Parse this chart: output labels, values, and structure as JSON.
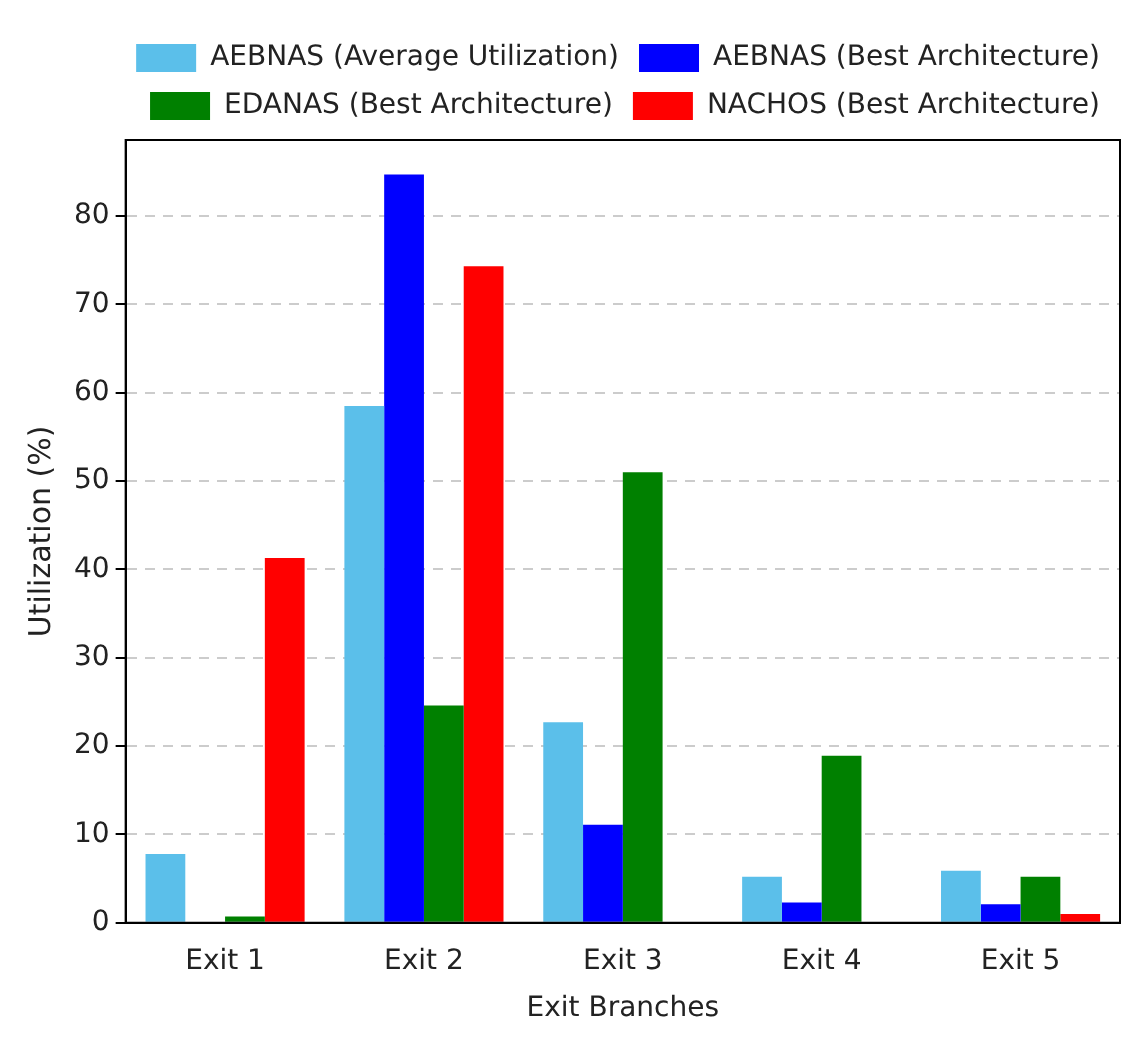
{
  "chart_data": {
    "type": "bar",
    "xlabel": "Exit Branches",
    "ylabel": "Utilization (%)",
    "categories": [
      "Exit 1",
      "Exit 2",
      "Exit 3",
      "Exit 4",
      "Exit 5"
    ],
    "series": [
      {
        "name": "AEBNAS (Average Utilization)",
        "color": "#5bbfea",
        "values": [
          7.8,
          58.5,
          22.7,
          5.2,
          5.9
        ]
      },
      {
        "name": "AEBNAS (Best Architecture)",
        "color": "#0000ff",
        "values": [
          0,
          84.7,
          11.1,
          2.3,
          2.1
        ]
      },
      {
        "name": "EDANAS (Best Architecture)",
        "color": "#008000",
        "values": [
          0.7,
          24.6,
          51,
          18.9,
          5.2
        ]
      },
      {
        "name": "NACHOS (Best Architecture)",
        "color": "#ff0000",
        "values": [
          41.3,
          74.3,
          0,
          0,
          1.0
        ]
      }
    ],
    "ylim": [
      0,
      88.6
    ],
    "yticks": [
      0,
      10,
      20,
      30,
      40,
      50,
      60,
      70,
      80
    ],
    "grid": "y",
    "legend": "top right"
  }
}
